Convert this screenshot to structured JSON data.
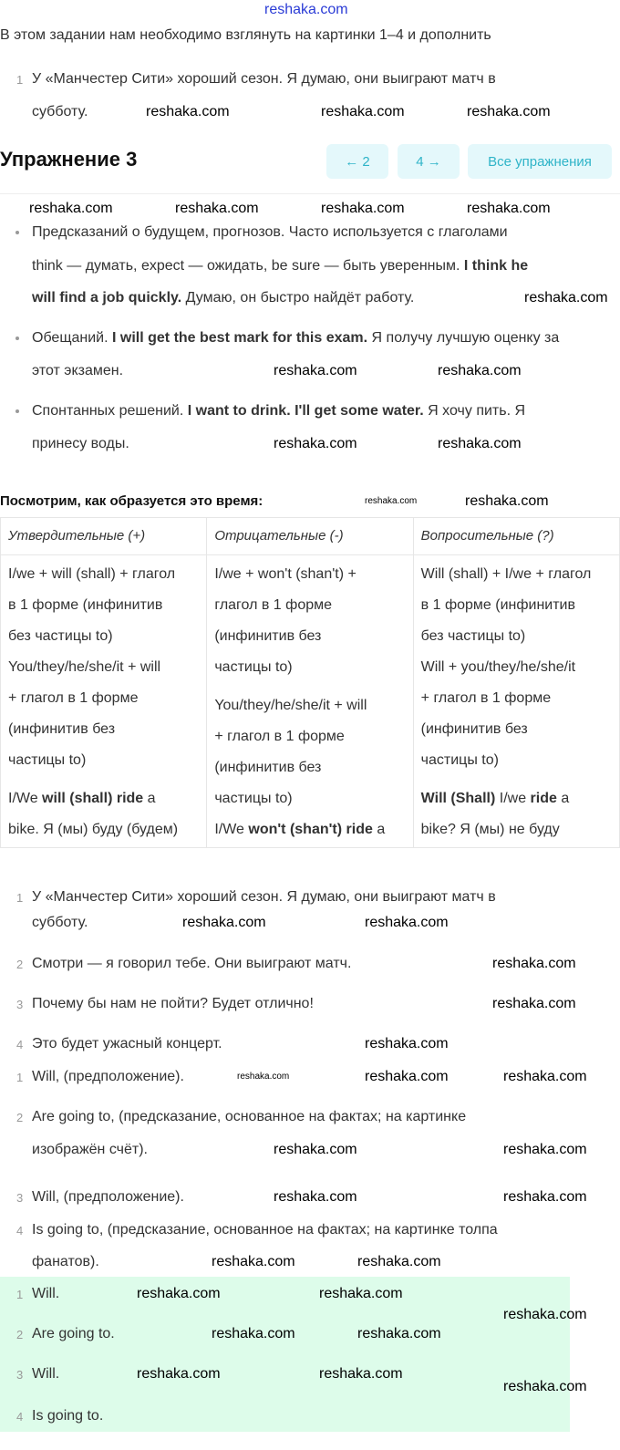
{
  "watermark": "reshaka.com",
  "intro": "В этом задании нам необходимо взглянуть на картинки 1–4 и дополнить",
  "top_item": {
    "num": "1",
    "line1": "У «Манчестер Сити» хороший сезон. Я думаю, они выиграют матч в",
    "line2": "субботу."
  },
  "header": {
    "title": "Упражнение 3",
    "prev": "← 2",
    "next": "4 →",
    "all": "Все упражнения"
  },
  "bullets": [
    {
      "l1": "Предсказаний о будущем, прогнозов. Часто используется с глаголами",
      "l2a": "think — думать, expect — ожидать, be sure — быть уверенным. ",
      "l2b": "I think he",
      "l3a": "will find a job quickly.",
      "l3b": " Думаю, он быстро найдёт работу."
    },
    {
      "l1a": "Обещаний. ",
      "l1b": "I will get the best mark for this exam.",
      "l1c": " Я получу лучшую оценку за",
      "l2": "этот экзамен."
    },
    {
      "l1a": "Спонтанных решений. ",
      "l1b": "I want to drink. I'll get some water.",
      "l1c": " Я хочу пить. Я",
      "l2": "принесу воды."
    }
  ],
  "table_title": "Посмотрим, как образуется это время:",
  "table": {
    "headers": [
      "Утвердительные (+)",
      "Отрицательные (-)",
      "Вопросительные (?)"
    ],
    "col1": [
      "I/we + will (shall) + глагол",
      "в 1 форме (инфинитив",
      "без частицы to)",
      "You/they/he/she/it + will",
      "+ глагол в 1 форме",
      "(инфинитив без",
      "частицы to)"
    ],
    "col1_ex": {
      "a": "I/We ",
      "b": "will (shall) ride",
      "c": " a",
      "d": "bike. Я (мы) буду (будем)"
    },
    "col2": [
      "I/we + won't (shan't) +",
      "глагол в 1 форме",
      "(инфинитив без",
      "частицы to)",
      "",
      "You/they/he/she/it + will",
      "+ глагол в 1 форме",
      "(инфинитив без",
      "частицы to)"
    ],
    "col2_ex": {
      "a": "I/We ",
      "b": "won't (shan't) ride",
      "c": " a"
    },
    "col3": [
      "Will (shall) + I/we + глагол",
      "в 1 форме (инфинитив",
      "без частицы to)",
      "Will + you/they/he/she/it",
      "+ глагол в 1 форме",
      "(инфинитив без",
      "частицы to)"
    ],
    "col3_ex": {
      "a": "Will (Shall)",
      "b": " I/we ",
      "c": "ride",
      "d": " a",
      "e": "bike? Я (мы) не буду"
    }
  },
  "sentences": [
    {
      "num": "1",
      "l1": "У «Манчестер Сити» хороший сезон. Я думаю, они выиграют матч в",
      "l2": "субботу."
    },
    {
      "num": "2",
      "l1": "Смотри — я говорил тебе. Они выиграют матч."
    },
    {
      "num": "3",
      "l1": "Почему бы нам не пойти? Будет отлично!"
    },
    {
      "num": "4",
      "l1": "Это будет ужасный концерт."
    }
  ],
  "explanations": [
    {
      "num": "1",
      "l1": "Will, (предположение)."
    },
    {
      "num": "2",
      "l1": "Are going to, (предсказание, основанное на фактах; на картинке",
      "l2": "изображён счёт)."
    },
    {
      "num": "3",
      "l1": "Will, (предположение)."
    },
    {
      "num": "4",
      "l1": "Is going to, (предсказание, основанное на фактах; на картинке толпа",
      "l2": "фанатов)."
    }
  ],
  "answers": [
    {
      "num": "1",
      "text": "Will."
    },
    {
      "num": "2",
      "text": "Are going to."
    },
    {
      "num": "3",
      "text": "Will."
    },
    {
      "num": "4",
      "text": "Is going to."
    }
  ]
}
